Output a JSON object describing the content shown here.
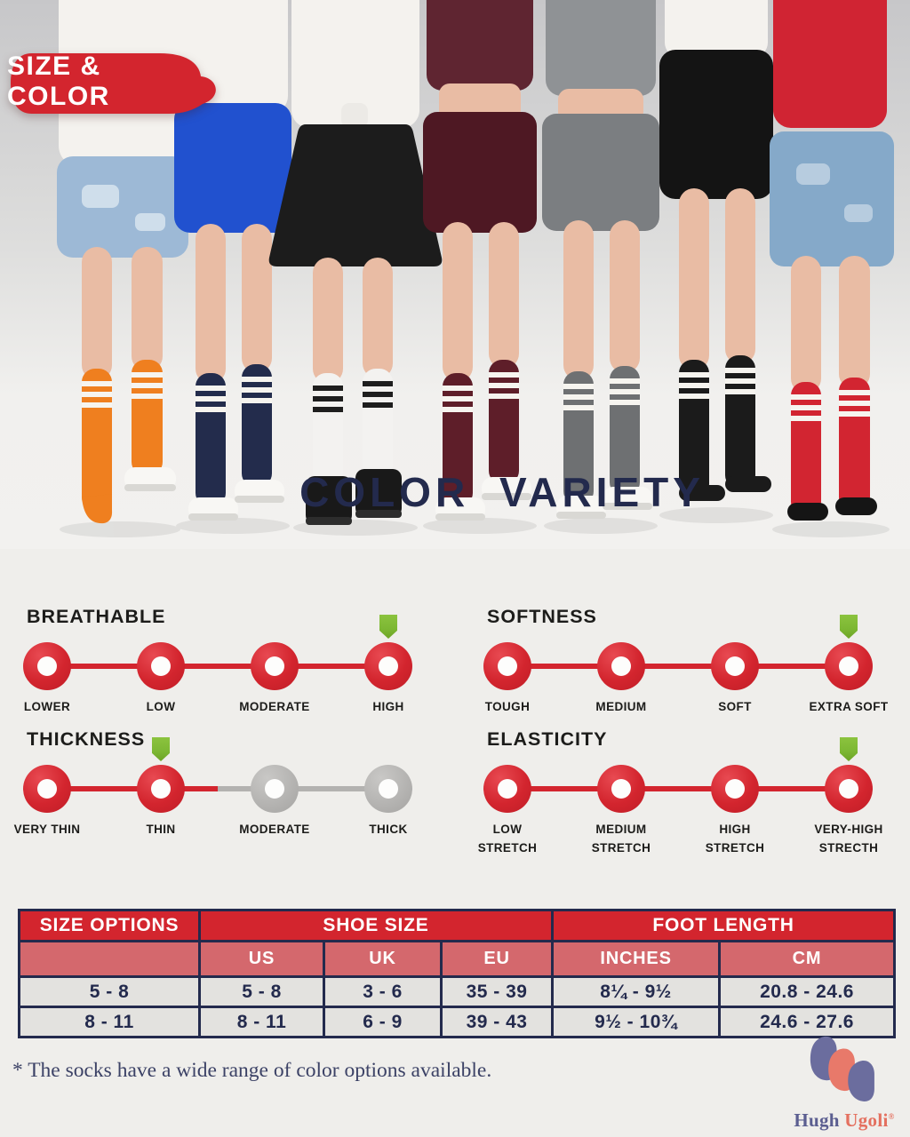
{
  "badge": {
    "label": "SIZE & COLOR"
  },
  "hero": {
    "title": "COLOR VARIETY",
    "models": [
      {
        "sock_color": "orange",
        "sock_hex": "#ef7f1f",
        "stripe_hex": "#f6f4ef",
        "top_hex": "#f4f2ee",
        "bottom_hex": "#9db9d6",
        "shoes": "white sneakers"
      },
      {
        "sock_color": "navy",
        "sock_hex": "#232c4c",
        "stripe_hex": "#f6f4ef",
        "top_hex": "#f4f2ee",
        "bottom_hex": "#2151cf",
        "shoes": "white sneakers"
      },
      {
        "sock_color": "white",
        "sock_hex": "#f3f2f0",
        "stripe_hex": "#1e1e1e",
        "top_hex": "#f4f2ee",
        "bottom_hex": "#1c1c1c",
        "shoes": "black boots"
      },
      {
        "sock_color": "burgundy",
        "sock_hex": "#5e1e29",
        "stripe_hex": "#f6f4ef",
        "top_hex": "#5f2531",
        "bottom_hex": "#4e1823",
        "shoes": "white sneakers"
      },
      {
        "sock_color": "gray",
        "sock_hex": "#6e7072",
        "stripe_hex": "#f6f4ef",
        "top_hex": "#8f9295",
        "bottom_hex": "#7b7e81",
        "shoes": "white sneakers"
      },
      {
        "sock_color": "black",
        "sock_hex": "#1b1b1b",
        "stripe_hex": "#f6f4ef",
        "top_hex": "#f4f2ee",
        "bottom_hex": "#141414",
        "shoes": "sock feet"
      },
      {
        "sock_color": "red",
        "sock_hex": "#d22531",
        "stripe_hex": "#f6f4ef",
        "top_hex": "#d02433",
        "bottom_hex": "#85a9c9",
        "shoes": "black sock feet"
      }
    ]
  },
  "scales": [
    {
      "title": "BREATHABLE",
      "levels": [
        {
          "label": "LOWER",
          "active": true
        },
        {
          "label": "LOW",
          "active": true
        },
        {
          "label": "MODERATE",
          "active": true
        },
        {
          "label": "HIGH",
          "active": true,
          "selected": true
        }
      ]
    },
    {
      "title": "SOFTNESS",
      "levels": [
        {
          "label": "TOUGH",
          "active": true
        },
        {
          "label": "MEDIUM",
          "active": true
        },
        {
          "label": "SOFT",
          "active": true
        },
        {
          "label": "EXTRA SOFT",
          "active": true,
          "selected": true
        }
      ]
    },
    {
      "title": "THICKNESS",
      "levels": [
        {
          "label": "VERY THIN",
          "active": true
        },
        {
          "label": "THIN",
          "active": true,
          "selected": true
        },
        {
          "label": "MODERATE",
          "active": false
        },
        {
          "label": "THICK",
          "active": false
        }
      ]
    },
    {
      "title": "ELASTICITY",
      "levels": [
        {
          "label": "LOW\nSTRETCH",
          "active": true
        },
        {
          "label": "MEDIUM\nSTRETCH",
          "active": true
        },
        {
          "label": "HIGH\nSTRETCH",
          "active": true
        },
        {
          "label": "VERY-HIGH\nSTRECTH",
          "active": true,
          "selected": true
        }
      ]
    }
  ],
  "table": {
    "header": {
      "size_options": "SIZE OPTIONS",
      "shoe_size": "SHOE SIZE",
      "foot_length": "FOOT LENGTH"
    },
    "subheader": [
      "US",
      "UK",
      "EU",
      "INCHES",
      "CM"
    ],
    "rows": [
      {
        "size": "5 - 8",
        "us": "5 - 8",
        "uk": "3 - 6",
        "eu": "35 - 39",
        "inches": "8¼ - 9½",
        "cm": "20.8 - 24.6"
      },
      {
        "size": "8 - 11",
        "us": "8 - 11",
        "uk": "6 - 9",
        "eu": "39 - 43",
        "inches": "9½ - 10¾",
        "cm": "24.6 - 27.6"
      }
    ]
  },
  "footnote": "* The socks have a wide range of  color options available.",
  "logo": {
    "brand_part1": "Hugh",
    "brand_part2": "Ugoli",
    "registered": "®"
  },
  "colors": {
    "accent_red": "#d3252e",
    "navy": "#232a4d",
    "marker_green": "#7cb733",
    "inactive_gray": "#b3b2b0",
    "subheader_red": "#d4686d",
    "row_bg": "#e3e2df",
    "page_bg": "#efeeeb",
    "logo_purple": "#5b5e90",
    "logo_coral": "#e4705f"
  }
}
